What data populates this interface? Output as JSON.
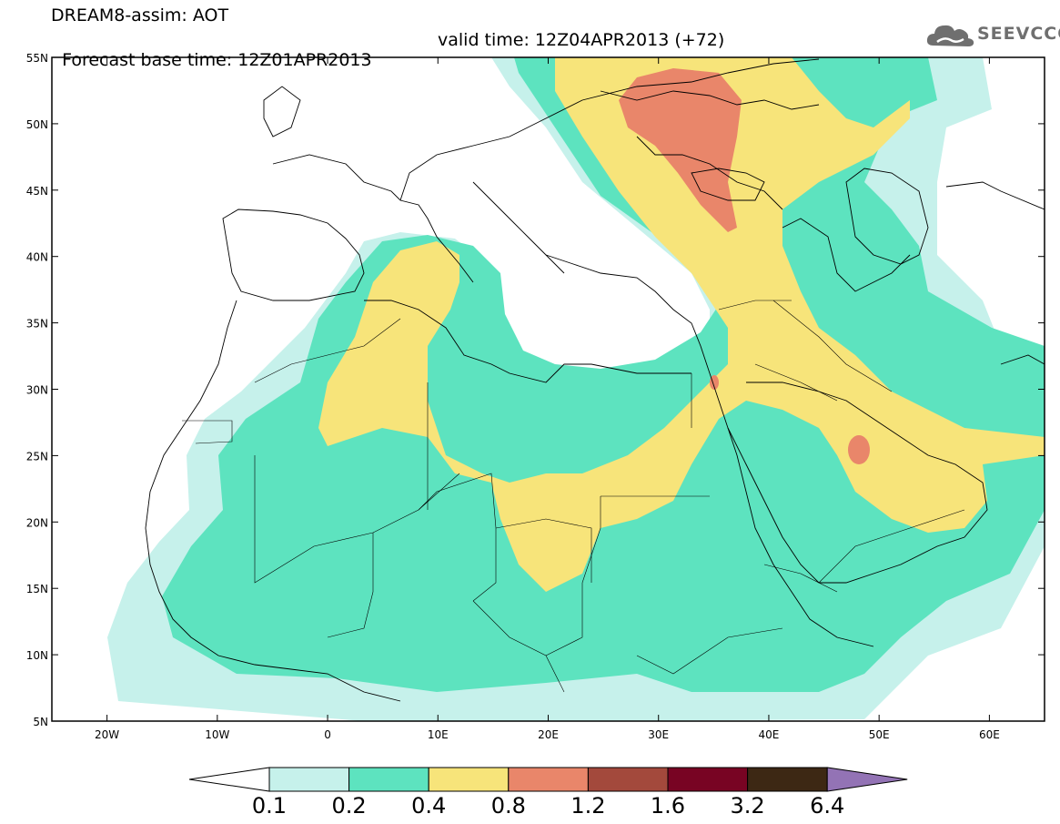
{
  "header": {
    "line1": "DREAM8-assim: AOT",
    "base_time": "Forecast base time: 12Z01APR2013",
    "valid_time": "valid time: 12Z04APR2013 (+72)"
  },
  "logo": {
    "text": "SEEVCCC",
    "icon": "cloud-icon"
  },
  "map": {
    "lat_labels": [
      "55N",
      "50N",
      "45N",
      "40N",
      "35N",
      "30N",
      "25N",
      "20N",
      "15N",
      "10N",
      "5N"
    ],
    "lon_labels": [
      "20W",
      "10W",
      "0",
      "10E",
      "20E",
      "30E",
      "40E",
      "50E",
      "60E"
    ],
    "lon_range": [
      -25,
      65
    ],
    "lat_range": [
      5,
      55
    ]
  },
  "colorbar": {
    "labels": [
      "0.1",
      "0.2",
      "0.4",
      "0.8",
      "1.2",
      "1.6",
      "3.2",
      "6.4"
    ],
    "colors": [
      "#ffffff",
      "#c6f1eb",
      "#5de3bf",
      "#f7e47a",
      "#e9866a",
      "#a3493c",
      "#780423",
      "#3d2814",
      "#9373b5"
    ]
  },
  "colors": {
    "level_01": "#c6f1eb",
    "level_02": "#5de3bf",
    "level_04": "#f7e47a",
    "level_08": "#e9866a",
    "level_12": "#a3493c"
  }
}
